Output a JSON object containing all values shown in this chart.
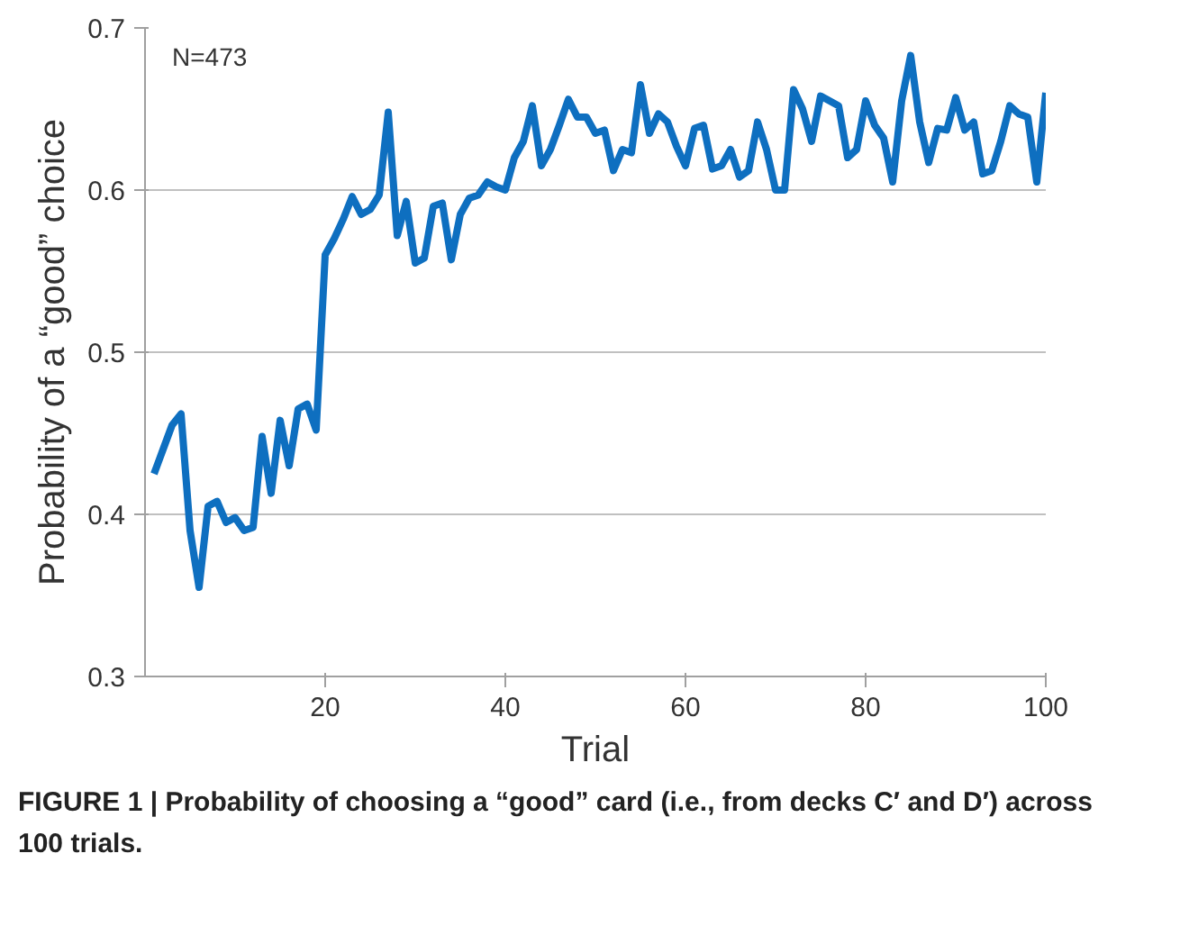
{
  "chart_data": {
    "type": "line",
    "xlabel": "Trial",
    "ylabel": "Probability of a “good” choice",
    "annotations": [
      "N=473",
      "FIGURE 1 | Probability of choosing a “good” card (i.e., from decks C′ and D′) across 100 trials."
    ],
    "x": [
      1,
      2,
      3,
      4,
      5,
      6,
      7,
      8,
      9,
      10,
      11,
      12,
      13,
      14,
      15,
      16,
      17,
      18,
      19,
      20,
      21,
      22,
      23,
      24,
      25,
      26,
      27,
      28,
      29,
      30,
      31,
      32,
      33,
      34,
      35,
      36,
      37,
      38,
      39,
      40,
      41,
      42,
      43,
      44,
      45,
      46,
      47,
      48,
      49,
      50,
      51,
      52,
      53,
      54,
      55,
      56,
      57,
      58,
      59,
      60,
      61,
      62,
      63,
      64,
      65,
      66,
      67,
      68,
      69,
      70,
      71,
      72,
      73,
      74,
      75,
      76,
      77,
      78,
      79,
      80,
      81,
      82,
      83,
      84,
      85,
      86,
      87,
      88,
      89,
      90,
      91,
      92,
      93,
      94,
      95,
      96,
      97,
      98,
      99,
      100
    ],
    "series": [
      {
        "color": "#0e6fc0",
        "values": [
          0.425,
          0.44,
          0.455,
          0.462,
          0.39,
          0.355,
          0.405,
          0.408,
          0.395,
          0.398,
          0.39,
          0.392,
          0.448,
          0.413,
          0.458,
          0.43,
          0.465,
          0.468,
          0.452,
          0.56,
          0.57,
          0.582,
          0.596,
          0.585,
          0.588,
          0.597,
          0.648,
          0.572,
          0.593,
          0.555,
          0.558,
          0.59,
          0.592,
          0.557,
          0.585,
          0.595,
          0.597,
          0.605,
          0.602,
          0.6,
          0.62,
          0.63,
          0.652,
          0.615,
          0.625,
          0.64,
          0.656,
          0.645,
          0.645,
          0.635,
          0.637,
          0.612,
          0.625,
          0.623,
          0.665,
          0.635,
          0.647,
          0.642,
          0.627,
          0.615,
          0.638,
          0.64,
          0.613,
          0.615,
          0.625,
          0.608,
          0.612,
          0.642,
          0.625,
          0.6,
          0.6,
          0.662,
          0.65,
          0.63,
          0.658,
          0.655,
          0.652,
          0.62,
          0.625,
          0.655,
          0.64,
          0.632,
          0.605,
          0.655,
          0.683,
          0.642,
          0.617,
          0.638,
          0.637,
          0.657,
          0.637,
          0.642,
          0.61,
          0.612,
          0.63,
          0.652,
          0.647,
          0.645,
          0.605,
          0.66
        ]
      }
    ],
    "xlim": [
      0,
      100
    ],
    "xticks": [
      20,
      40,
      60,
      80,
      100
    ],
    "ylim": [
      0.3,
      0.7
    ],
    "yticks": [
      {
        "value": 0.3,
        "label": "0.3"
      },
      {
        "value": 0.4,
        "label": "0.4"
      },
      {
        "value": 0.5,
        "label": "0.5"
      },
      {
        "value": 0.6,
        "label": "0.6"
      },
      {
        "value": 0.7,
        "label": "0.7"
      }
    ],
    "grid": "y",
    "marker": "none",
    "line_style": "solid"
  }
}
